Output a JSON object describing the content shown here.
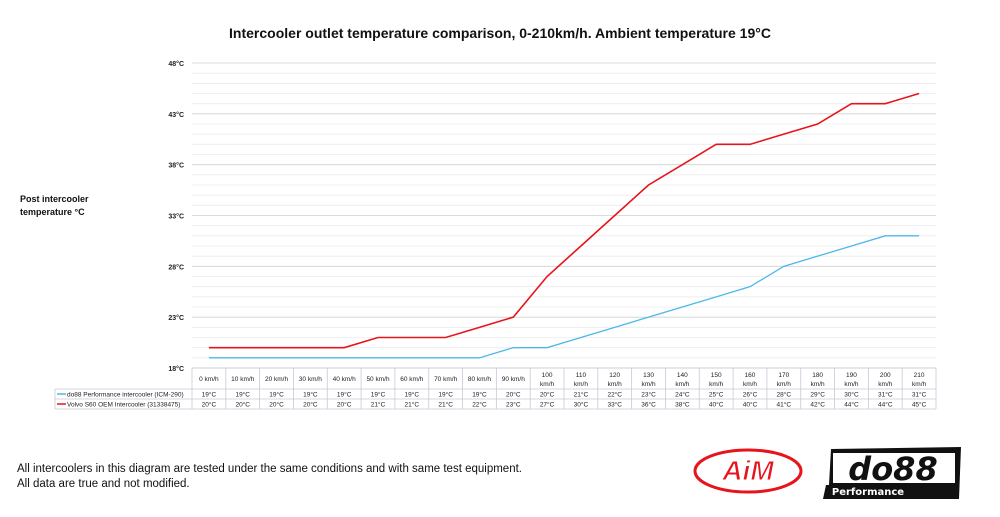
{
  "chart_data": {
    "type": "line",
    "title": "Intercooler outlet temperature comparison, 0-210km/h. Ambient temperature 19°C",
    "ylabel": "Post intercooler temperature °C",
    "xlabel": "",
    "ylim": [
      18,
      48
    ],
    "yticks": [
      "18°C",
      "23°C",
      "28°C",
      "33°C",
      "38°C",
      "43°C",
      "48°C"
    ],
    "grid": true,
    "categories": [
      "0 km/h",
      "10 km/h",
      "20 km/h",
      "30 km/h",
      "40 km/h",
      "50 km/h",
      "60 km/h",
      "70 km/h",
      "80 km/h",
      "90 km/h",
      "100 km/h",
      "110 km/h",
      "120 km/h",
      "130 km/h",
      "140 km/h",
      "150 km/h",
      "160 km/h",
      "170 km/h",
      "180 km/h",
      "190 km/h",
      "200 km/h",
      "210 km/h"
    ],
    "series": [
      {
        "name": "do88 Performance intercooler (ICM-290)",
        "color": "#4db8e8",
        "values": [
          19,
          19,
          19,
          19,
          19,
          19,
          19,
          19,
          19,
          20,
          20,
          21,
          22,
          23,
          24,
          25,
          26,
          28,
          29,
          30,
          31,
          31
        ]
      },
      {
        "name": "Volvo S60 OEM Intercooler (31338475)",
        "color": "#e8141b",
        "values": [
          20,
          20,
          20,
          20,
          20,
          21,
          21,
          21,
          22,
          23,
          27,
          30,
          33,
          36,
          38,
          40,
          40,
          41,
          42,
          44,
          44,
          45
        ]
      }
    ],
    "data_table": true,
    "unit": "°C"
  },
  "footer": {
    "line1": "All intercoolers in this diagram are tested under the same conditions and with same test equipment.",
    "line2": "All data are true and not modified."
  },
  "logos": {
    "aim": "AiM",
    "do88": "do88",
    "do88_sub": "Performance",
    "aim_color": "#e8141b"
  }
}
